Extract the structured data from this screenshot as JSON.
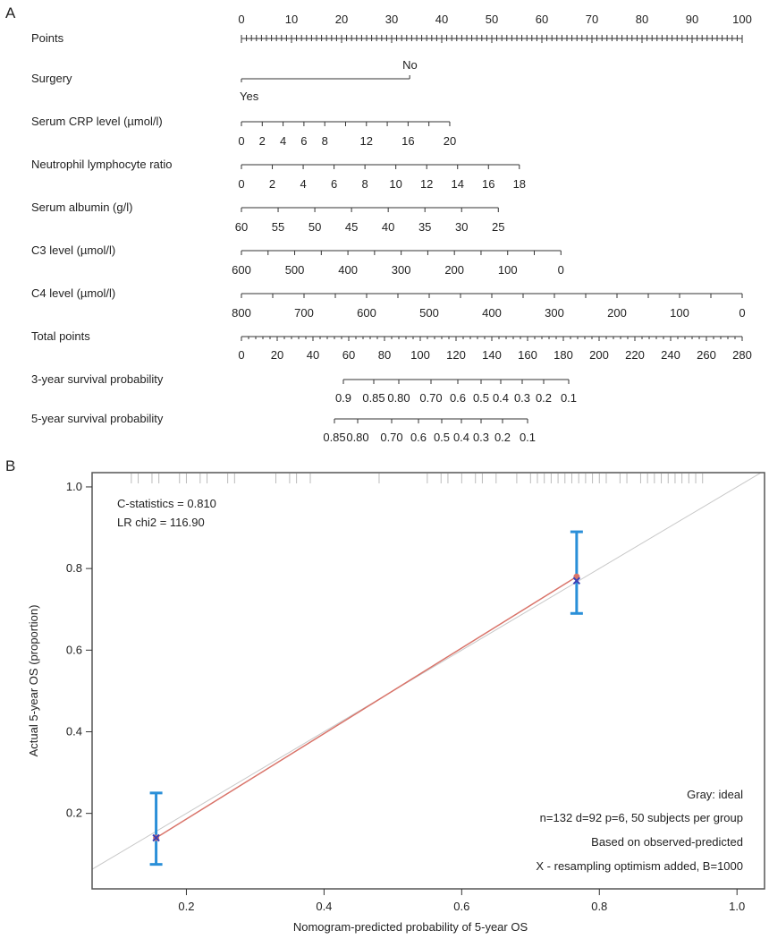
{
  "chart_data": [
    {
      "type": "nomogram",
      "panel_label": "A",
      "rows": [
        {
          "label": "Points",
          "kind": "points",
          "min": 0,
          "max": 100,
          "ticks": [
            0,
            10,
            20,
            30,
            40,
            50,
            60,
            70,
            80,
            90,
            100
          ]
        },
        {
          "label": "Surgery",
          "kind": "categorical",
          "levels": [
            {
              "name": "Yes",
              "points": 0
            },
            {
              "name": "No",
              "points": 33.6
            }
          ]
        },
        {
          "label": "Serum CRP level (µmol/l)",
          "kind": "scale",
          "values": [
            0,
            2,
            4,
            6,
            8,
            10,
            12,
            14,
            16,
            18,
            20
          ],
          "tick_labels": [
            "0",
            "2",
            "4",
            "6",
            "8",
            "12",
            "16",
            "20"
          ],
          "points_at_min": 0,
          "points_at_max": 41.6
        },
        {
          "label": "Neutrophil lymphocyte ratio",
          "kind": "scale",
          "values": [
            0,
            2,
            4,
            6,
            8,
            10,
            12,
            14,
            16,
            18
          ],
          "tick_labels": [
            "0",
            "2",
            "4",
            "6",
            "8",
            "10",
            "12",
            "14",
            "16",
            "18"
          ],
          "points_at_min": 0,
          "points_at_max": 55.5
        },
        {
          "label": "Serum albumin (g/l)",
          "kind": "scale",
          "values": [
            60,
            55,
            50,
            45,
            40,
            35,
            30,
            25
          ],
          "tick_labels": [
            "60",
            "55",
            "50",
            "45",
            "40",
            "35",
            "30",
            "25"
          ],
          "points_at_min": 0,
          "points_at_max": 51.3
        },
        {
          "label": "C3 level (µmol/l)",
          "kind": "scale",
          "values": [
            600,
            550,
            500,
            450,
            400,
            350,
            300,
            250,
            200,
            150,
            100,
            50,
            0
          ],
          "tick_labels": [
            "600",
            "500",
            "400",
            "300",
            "200",
            "100",
            "0"
          ],
          "points_at_min": 0,
          "points_at_max": 63.8
        },
        {
          "label": "C4 level (µmol/l)",
          "kind": "scale",
          "values": [
            800,
            750,
            700,
            650,
            600,
            550,
            500,
            450,
            400,
            350,
            300,
            250,
            200,
            150,
            100,
            50,
            0
          ],
          "tick_labels": [
            "800",
            "700",
            "600",
            "500",
            "400",
            "300",
            "200",
            "100",
            "0"
          ],
          "points_at_min": 0,
          "points_at_max": 100
        },
        {
          "label": "Total points",
          "kind": "total",
          "min": 0,
          "max": 280,
          "ticks": [
            0,
            20,
            40,
            60,
            80,
            100,
            120,
            140,
            160,
            180,
            200,
            220,
            240,
            260,
            280
          ]
        },
        {
          "label": "3-year survival probability",
          "kind": "prob",
          "tick_labels": [
            "0.9",
            "0.85",
            "0.80",
            "0.70",
            "0.6",
            "0.5",
            "0.4",
            "0.3",
            "0.2",
            "0.1"
          ],
          "total_points": [
            57,
            74,
            88,
            106,
            121,
            134,
            145,
            157,
            169,
            183
          ]
        },
        {
          "label": "5-year survival probability",
          "kind": "prob",
          "tick_labels": [
            "0.85",
            "0.80",
            "0.70",
            "0.6",
            "0.5",
            "0.4",
            "0.3",
            "0.2",
            "0.1"
          ],
          "total_points": [
            52,
            65,
            84,
            99,
            112,
            123,
            134,
            146,
            160
          ]
        }
      ]
    },
    {
      "type": "scatter",
      "panel_label": "B",
      "title": "",
      "xlabel": "Nomogram-predicted probability of 5-year OS",
      "ylabel": "Actual 5-year OS (proportion)",
      "xlim": [
        0.063,
        1.04
      ],
      "ylim": [
        0.015,
        1.035
      ],
      "xticks": [
        "0.2",
        "0.4",
        "0.6",
        "0.8",
        "1.0"
      ],
      "yticks": [
        "0.2",
        "0.4",
        "0.6",
        "0.8",
        "1.0"
      ],
      "points": [
        {
          "x": 0.156,
          "y": 0.14,
          "ci_low": 0.075,
          "ci_high": 0.25
        },
        {
          "x": 0.767,
          "y": 0.78,
          "ci_low": 0.69,
          "ci_high": 0.89
        }
      ],
      "corrected_points": [
        {
          "x": 0.156,
          "y": 0.14
        },
        {
          "x": 0.767,
          "y": 0.77
        }
      ],
      "ideal_line": [
        [
          0,
          0
        ],
        [
          1.05,
          1.05
        ]
      ],
      "rug_x": [
        0.12,
        0.13,
        0.15,
        0.16,
        0.19,
        0.2,
        0.22,
        0.23,
        0.26,
        0.27,
        0.33,
        0.35,
        0.36,
        0.38,
        0.48,
        0.55,
        0.57,
        0.58,
        0.6,
        0.62,
        0.63,
        0.65,
        0.68,
        0.7,
        0.71,
        0.72,
        0.73,
        0.74,
        0.75,
        0.76,
        0.77,
        0.78,
        0.79,
        0.8,
        0.81,
        0.83,
        0.84,
        0.86,
        0.87,
        0.88,
        0.89,
        0.9,
        0.91,
        0.92,
        0.93,
        0.94,
        0.95
      ],
      "annotations": {
        "c_stat": "C-statistics = 0.810",
        "lr": "LR chi2 = 116.90",
        "legend": [
          "Gray: ideal",
          "n=132 d=92 p=6, 50 subjects per group",
          "Based on observed-predicted",
          "X - resampling optimism added, B=1000"
        ]
      },
      "colors": {
        "ideal": "#c8c8c8",
        "apparent": "#d9746a",
        "error_bar": "#2a8fd8",
        "point": "#3b3fb5"
      }
    }
  ]
}
